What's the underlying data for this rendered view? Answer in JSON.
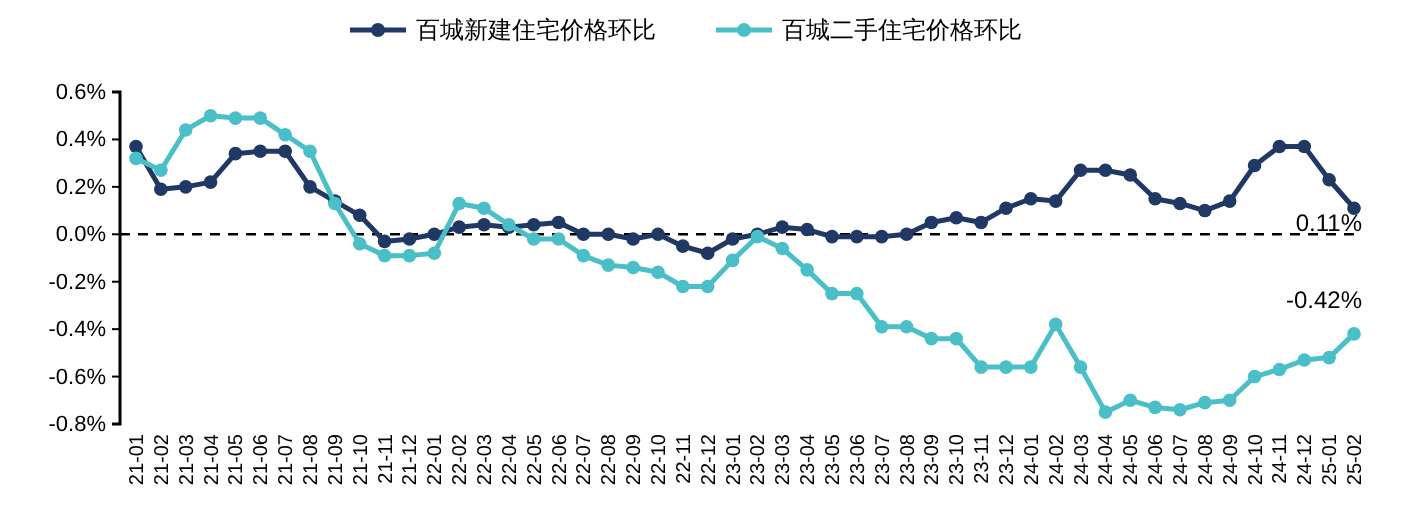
{
  "chart_data": {
    "type": "line",
    "categories": [
      "21-01",
      "21-02",
      "21-03",
      "21-04",
      "21-05",
      "21-06",
      "21-07",
      "21-08",
      "21-09",
      "21-10",
      "21-11",
      "21-12",
      "22-01",
      "22-02",
      "22-03",
      "22-04",
      "22-05",
      "22-06",
      "22-07",
      "22-08",
      "22-09",
      "22-10",
      "22-11",
      "22-12",
      "23-01",
      "23-02",
      "23-03",
      "23-04",
      "23-05",
      "23-06",
      "23-07",
      "23-08",
      "23-09",
      "23-10",
      "23-11",
      "23-12",
      "24-01",
      "24-02",
      "24-03",
      "24-04",
      "24-05",
      "24-06",
      "24-07",
      "24-08",
      "24-09",
      "24-10",
      "24-11",
      "24-12",
      "25-01",
      "25-02"
    ],
    "series": [
      {
        "name": "百城新建住宅价格环比",
        "color": "#203864",
        "values": [
          0.37,
          0.19,
          0.2,
          0.22,
          0.34,
          0.35,
          0.35,
          0.2,
          0.14,
          0.08,
          -0.03,
          -0.02,
          0.0,
          0.03,
          0.04,
          0.03,
          0.04,
          0.05,
          0.0,
          0.0,
          -0.02,
          0.0,
          -0.05,
          -0.08,
          -0.02,
          0.0,
          0.03,
          0.02,
          -0.01,
          -0.01,
          -0.01,
          0.0,
          0.05,
          0.07,
          0.05,
          0.11,
          0.15,
          0.14,
          0.27,
          0.27,
          0.25,
          0.15,
          0.13,
          0.1,
          0.14,
          0.29,
          0.37,
          0.37,
          0.23,
          0.11
        ],
        "value_labels": [
          null,
          null,
          null,
          null,
          null,
          null,
          null,
          null,
          null,
          null,
          null,
          null,
          null,
          null,
          null,
          null,
          null,
          null,
          null,
          null,
          null,
          null,
          null,
          null,
          null,
          null,
          null,
          null,
          null,
          null,
          null,
          null,
          null,
          null,
          null,
          null,
          null,
          null,
          null,
          null,
          null,
          null,
          null,
          null,
          null,
          null,
          null,
          null,
          null,
          "0.11%"
        ]
      },
      {
        "name": "百城二手住宅价格环比",
        "color": "#4bbfc8",
        "values": [
          0.32,
          0.27,
          0.44,
          0.5,
          0.49,
          0.49,
          0.42,
          0.35,
          0.13,
          -0.04,
          -0.09,
          -0.09,
          -0.08,
          0.13,
          0.11,
          0.04,
          -0.02,
          -0.02,
          -0.09,
          -0.13,
          -0.14,
          -0.16,
          -0.22,
          -0.22,
          -0.11,
          -0.01,
          -0.06,
          -0.15,
          -0.25,
          -0.25,
          -0.39,
          -0.39,
          -0.44,
          -0.44,
          -0.56,
          -0.56,
          -0.56,
          -0.38,
          -0.56,
          -0.75,
          -0.7,
          -0.73,
          -0.74,
          -0.71,
          -0.7,
          -0.6,
          -0.57,
          -0.53,
          -0.52,
          -0.42
        ],
        "value_labels": [
          null,
          null,
          null,
          null,
          null,
          null,
          null,
          null,
          null,
          null,
          null,
          null,
          null,
          null,
          null,
          null,
          null,
          null,
          null,
          null,
          null,
          null,
          null,
          null,
          null,
          null,
          null,
          null,
          null,
          null,
          null,
          null,
          null,
          null,
          null,
          null,
          null,
          null,
          null,
          null,
          null,
          null,
          null,
          null,
          null,
          null,
          null,
          null,
          null,
          "-0.42%"
        ]
      }
    ],
    "ylim": [
      -0.8,
      0.6
    ],
    "yticks": [
      {
        "value": -0.8,
        "label": "-0.8%"
      },
      {
        "value": -0.6,
        "label": "-0.6%"
      },
      {
        "value": -0.4,
        "label": "-0.4%"
      },
      {
        "value": -0.2,
        "label": "-0.2%"
      },
      {
        "value": 0,
        "label": "0.0%"
      },
      {
        "value": 0.2,
        "label": "0.2%"
      },
      {
        "value": 0.4,
        "label": "0.4%"
      },
      {
        "value": 0.6,
        "label": "0.6%"
      }
    ],
    "ref_lines": [
      {
        "axis": "y",
        "value": 0,
        "color": "#000000",
        "line_style": "dashed"
      }
    ],
    "legend": "top",
    "marker": "circle",
    "line_style": "solid",
    "grid": false
  }
}
